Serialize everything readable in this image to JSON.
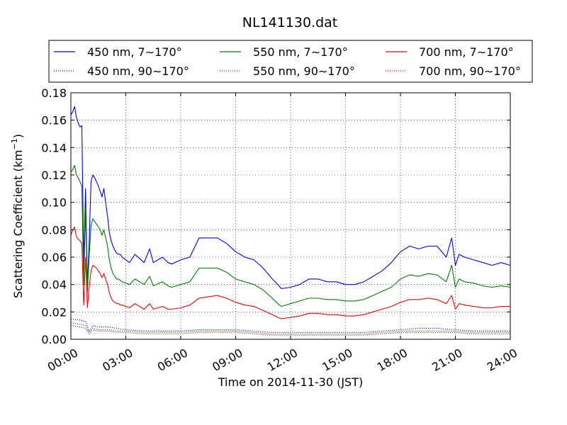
{
  "chart_data": {
    "type": "line",
    "title": "NL141130.dat",
    "xlabel": "Time on 2014-11-30 (JST)",
    "ylabel": "Scattering Coefficient (km",
    "ylabel_exp": "−1",
    "ylabel_close": ")",
    "xlim": [
      "00:00",
      "24:00"
    ],
    "ylim": [
      0.0,
      0.18
    ],
    "x_ticks": [
      "00:00",
      "03:00",
      "06:00",
      "09:00",
      "12:00",
      "15:00",
      "18:00",
      "21:00",
      "24:00"
    ],
    "y_ticks": [
      "0.00",
      "0.02",
      "0.04",
      "0.06",
      "0.08",
      "0.10",
      "0.12",
      "0.14",
      "0.16",
      "0.18"
    ],
    "grid": true,
    "legend_position": "top",
    "series": [
      {
        "name": "450 nm, 7∼170°",
        "color": "#0000ff",
        "style": "solid",
        "x": [
          0,
          0.1,
          0.2,
          0.3,
          0.4,
          0.5,
          0.6,
          0.7,
          0.8,
          0.9,
          1.0,
          1.1,
          1.2,
          1.3,
          1.4,
          1.5,
          1.6,
          1.7,
          1.8,
          1.9,
          2.0,
          2.1,
          2.2,
          2.3,
          2.4,
          2.5,
          2.6,
          2.7,
          2.8,
          3.0,
          3.2,
          3.5,
          4.0,
          4.3,
          4.5,
          5.0,
          5.3,
          5.5,
          6.0,
          6.5,
          7.0,
          7.5,
          8.0,
          8.5,
          9.0,
          9.5,
          10.0,
          10.5,
          11.0,
          11.3,
          11.5,
          12.0,
          12.5,
          13.0,
          13.5,
          14.0,
          14.5,
          15.0,
          15.5,
          16.0,
          16.5,
          17.0,
          17.5,
          18.0,
          18.5,
          19.0,
          19.5,
          20.0,
          20.5,
          20.8,
          21.0,
          21.2,
          21.5,
          22.0,
          22.5,
          23.0,
          23.5,
          24.0
        ],
        "y": [
          0.164,
          0.166,
          0.17,
          0.162,
          0.158,
          0.155,
          0.156,
          0.055,
          0.11,
          0.04,
          0.07,
          0.115,
          0.12,
          0.118,
          0.115,
          0.112,
          0.108,
          0.104,
          0.11,
          0.1,
          0.09,
          0.078,
          0.072,
          0.068,
          0.065,
          0.063,
          0.062,
          0.062,
          0.06,
          0.058,
          0.056,
          0.062,
          0.056,
          0.066,
          0.056,
          0.06,
          0.056,
          0.055,
          0.058,
          0.06,
          0.074,
          0.074,
          0.074,
          0.07,
          0.064,
          0.06,
          0.058,
          0.052,
          0.044,
          0.04,
          0.037,
          0.038,
          0.04,
          0.044,
          0.044,
          0.042,
          0.042,
          0.04,
          0.04,
          0.042,
          0.046,
          0.05,
          0.056,
          0.064,
          0.068,
          0.066,
          0.068,
          0.068,
          0.06,
          0.074,
          0.054,
          0.062,
          0.06,
          0.058,
          0.056,
          0.054,
          0.056,
          0.054
        ]
      },
      {
        "name": "550 nm, 7∼170°",
        "color": "#008000",
        "style": "solid",
        "x": [
          0,
          0.1,
          0.2,
          0.3,
          0.4,
          0.5,
          0.6,
          0.7,
          0.8,
          0.9,
          1.0,
          1.1,
          1.2,
          1.3,
          1.4,
          1.5,
          1.6,
          1.7,
          1.8,
          1.9,
          2.0,
          2.1,
          2.2,
          2.3,
          2.4,
          2.5,
          2.6,
          2.7,
          2.8,
          3.0,
          3.2,
          3.5,
          4.0,
          4.3,
          4.5,
          5.0,
          5.3,
          5.5,
          6.0,
          6.5,
          7.0,
          7.5,
          8.0,
          8.5,
          9.0,
          9.5,
          10.0,
          10.5,
          11.0,
          11.3,
          11.5,
          12.0,
          12.5,
          13.0,
          13.5,
          14.0,
          14.5,
          15.0,
          15.5,
          16.0,
          16.5,
          17.0,
          17.5,
          18.0,
          18.5,
          19.0,
          19.5,
          20.0,
          20.5,
          20.8,
          21.0,
          21.2,
          21.5,
          22.0,
          22.5,
          23.0,
          23.5,
          24.0
        ],
        "y": [
          0.122,
          0.124,
          0.127,
          0.12,
          0.118,
          0.115,
          0.112,
          0.04,
          0.095,
          0.035,
          0.06,
          0.083,
          0.088,
          0.086,
          0.084,
          0.082,
          0.08,
          0.076,
          0.08,
          0.074,
          0.068,
          0.058,
          0.052,
          0.048,
          0.046,
          0.044,
          0.044,
          0.043,
          0.042,
          0.041,
          0.04,
          0.044,
          0.04,
          0.046,
          0.039,
          0.042,
          0.039,
          0.038,
          0.04,
          0.042,
          0.052,
          0.052,
          0.052,
          0.049,
          0.044,
          0.042,
          0.04,
          0.036,
          0.03,
          0.026,
          0.024,
          0.026,
          0.028,
          0.03,
          0.03,
          0.029,
          0.029,
          0.028,
          0.028,
          0.029,
          0.032,
          0.035,
          0.038,
          0.044,
          0.047,
          0.046,
          0.048,
          0.047,
          0.042,
          0.054,
          0.038,
          0.044,
          0.042,
          0.041,
          0.039,
          0.038,
          0.039,
          0.038
        ]
      },
      {
        "name": "700 nm, 7∼170°",
        "color": "#ff0000",
        "style": "solid",
        "x": [
          0,
          0.1,
          0.2,
          0.3,
          0.4,
          0.5,
          0.6,
          0.7,
          0.8,
          0.9,
          1.0,
          1.1,
          1.2,
          1.3,
          1.4,
          1.5,
          1.6,
          1.7,
          1.8,
          1.9,
          2.0,
          2.1,
          2.2,
          2.3,
          2.4,
          2.5,
          2.6,
          2.7,
          2.8,
          3.0,
          3.2,
          3.5,
          4.0,
          4.3,
          4.5,
          5.0,
          5.3,
          5.5,
          6.0,
          6.5,
          7.0,
          7.5,
          8.0,
          8.5,
          9.0,
          9.5,
          10.0,
          10.5,
          11.0,
          11.3,
          11.5,
          12.0,
          12.5,
          13.0,
          13.5,
          14.0,
          14.5,
          15.0,
          15.5,
          16.0,
          16.5,
          17.0,
          17.5,
          18.0,
          18.5,
          19.0,
          19.5,
          20.0,
          20.5,
          20.8,
          21.0,
          21.2,
          21.5,
          22.0,
          22.5,
          23.0,
          23.5,
          24.0
        ],
        "y": [
          0.076,
          0.08,
          0.082,
          0.075,
          0.073,
          0.072,
          0.07,
          0.025,
          0.06,
          0.023,
          0.038,
          0.05,
          0.054,
          0.053,
          0.052,
          0.05,
          0.048,
          0.045,
          0.048,
          0.044,
          0.04,
          0.034,
          0.03,
          0.028,
          0.027,
          0.026,
          0.026,
          0.025,
          0.025,
          0.024,
          0.023,
          0.026,
          0.022,
          0.026,
          0.022,
          0.024,
          0.022,
          0.022,
          0.023,
          0.025,
          0.03,
          0.031,
          0.032,
          0.03,
          0.027,
          0.025,
          0.024,
          0.021,
          0.018,
          0.016,
          0.015,
          0.016,
          0.017,
          0.019,
          0.019,
          0.018,
          0.018,
          0.017,
          0.017,
          0.018,
          0.02,
          0.022,
          0.024,
          0.027,
          0.029,
          0.029,
          0.03,
          0.029,
          0.026,
          0.032,
          0.022,
          0.026,
          0.025,
          0.024,
          0.023,
          0.023,
          0.024,
          0.024
        ]
      },
      {
        "name": "450 nm, 90∼170°",
        "color": "#0000ff",
        "style": "dotted",
        "x": [
          0,
          0.5,
          0.8,
          1.0,
          1.2,
          1.5,
          2.0,
          2.5,
          3.0,
          4.0,
          5.0,
          6.0,
          7.0,
          8.0,
          9.0,
          10.0,
          11.0,
          12.0,
          13.0,
          14.0,
          15.0,
          16.0,
          17.0,
          18.0,
          19.0,
          20.0,
          21.0,
          22.0,
          23.0,
          24.0
        ],
        "y": [
          0.015,
          0.014,
          0.013,
          0.006,
          0.01,
          0.009,
          0.009,
          0.008,
          0.007,
          0.006,
          0.006,
          0.006,
          0.007,
          0.007,
          0.007,
          0.006,
          0.005,
          0.005,
          0.005,
          0.005,
          0.005,
          0.005,
          0.006,
          0.007,
          0.008,
          0.008,
          0.007,
          0.006,
          0.006,
          0.006
        ]
      },
      {
        "name": "550 nm, 90∼170°",
        "color": "#008000",
        "style": "dotted",
        "x": [
          0,
          0.5,
          0.8,
          1.0,
          1.2,
          1.5,
          2.0,
          2.5,
          3.0,
          4.0,
          5.0,
          6.0,
          7.0,
          8.0,
          9.0,
          10.0,
          11.0,
          12.0,
          13.0,
          14.0,
          15.0,
          16.0,
          17.0,
          18.0,
          19.0,
          20.0,
          21.0,
          22.0,
          23.0,
          24.0
        ],
        "y": [
          0.012,
          0.011,
          0.01,
          0.005,
          0.008,
          0.007,
          0.007,
          0.006,
          0.006,
          0.005,
          0.005,
          0.005,
          0.006,
          0.006,
          0.006,
          0.005,
          0.004,
          0.004,
          0.004,
          0.004,
          0.004,
          0.004,
          0.005,
          0.006,
          0.006,
          0.006,
          0.006,
          0.005,
          0.005,
          0.005
        ]
      },
      {
        "name": "700 nm, 90∼170°",
        "color": "#ff0000",
        "style": "dotted",
        "x": [
          0,
          0.5,
          0.8,
          1.0,
          1.2,
          1.5,
          2.0,
          2.5,
          3.0,
          4.0,
          5.0,
          6.0,
          7.0,
          8.0,
          9.0,
          10.0,
          11.0,
          12.0,
          13.0,
          14.0,
          15.0,
          16.0,
          17.0,
          18.0,
          19.0,
          20.0,
          21.0,
          22.0,
          23.0,
          24.0
        ],
        "y": [
          0.01,
          0.009,
          0.008,
          0.004,
          0.007,
          0.006,
          0.006,
          0.005,
          0.005,
          0.004,
          0.004,
          0.004,
          0.005,
          0.005,
          0.005,
          0.004,
          0.003,
          0.003,
          0.003,
          0.003,
          0.003,
          0.003,
          0.004,
          0.005,
          0.005,
          0.005,
          0.005,
          0.004,
          0.004,
          0.004
        ]
      }
    ]
  }
}
